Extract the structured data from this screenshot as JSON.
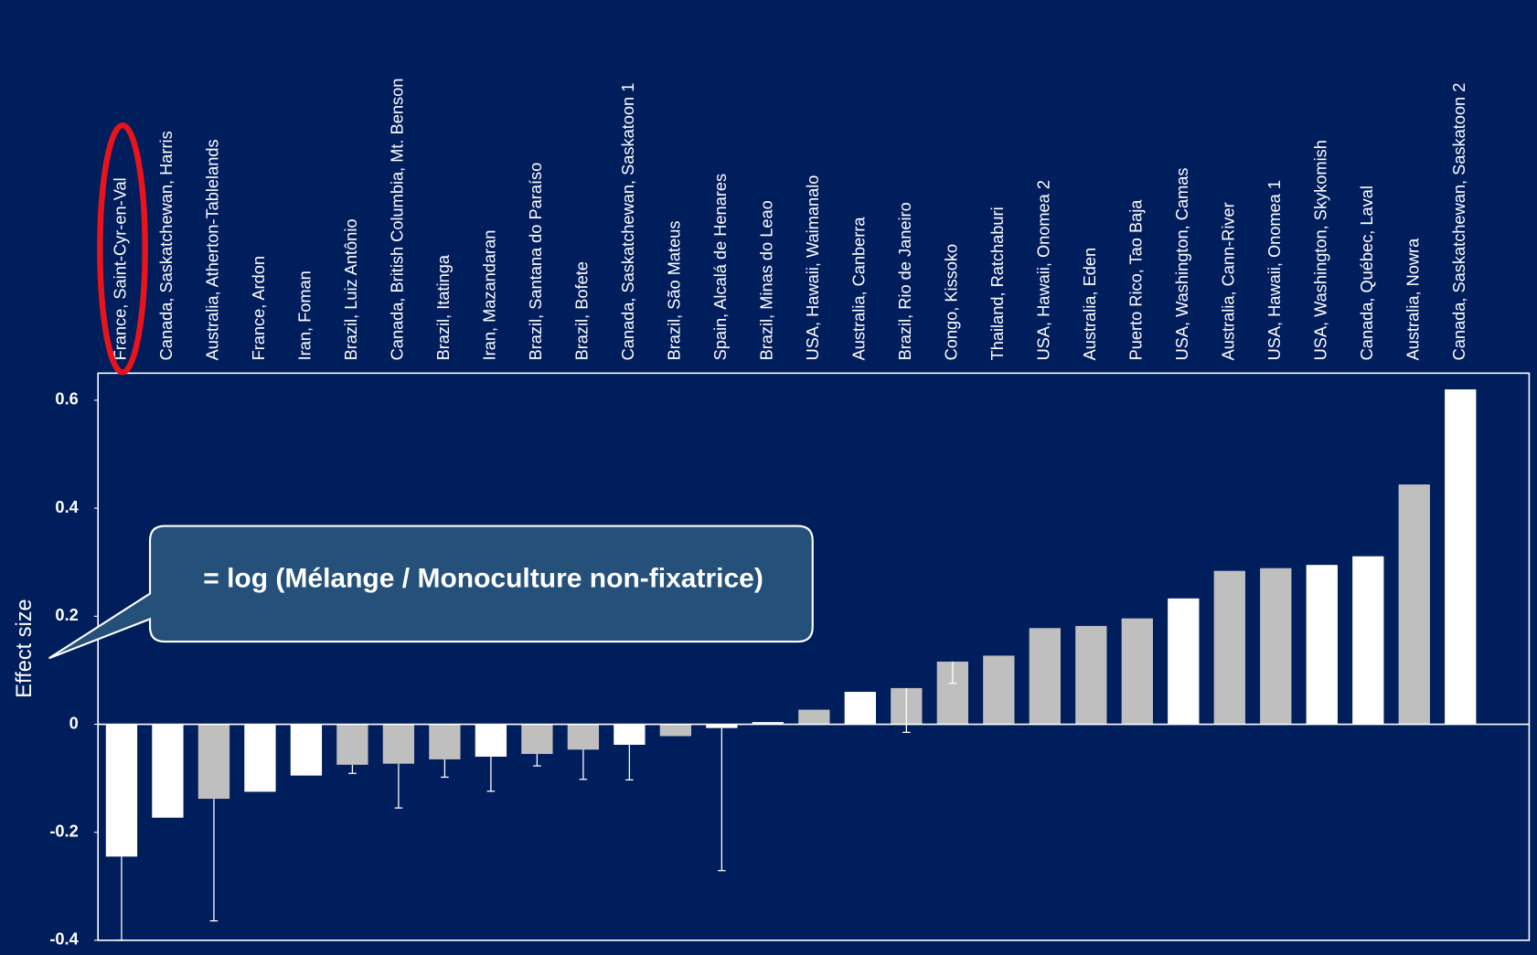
{
  "chart_data": {
    "type": "bar",
    "y_label": "Effect size",
    "annotation": "= log (Mélange / Monoculture non-fixatrice)",
    "categories": [
      "France, Saint-Cyr-en-Val",
      "Canada, Saskatchewan, Harris",
      "Australia, Atherton-Tablelands",
      "France, Ardon",
      "Iran, Foman",
      "Brazil, Luiz Antônio",
      "Canada, British Columbia, Mt. Benson",
      "Brazil, Itatinga",
      "Iran, Mazandaran",
      "Brazil, Santana do Paraíso",
      "Brazil, Bofete",
      "Canada, Saskatchewan, Saskatoon 1",
      "Brazil, São Mateus",
      "Spain, Alcalá de Henares",
      "Brazil, Minas do Leao",
      "USA, Hawaii, Waimanalo",
      "Australia, Canberra",
      "Brazil, Rio de Janeiro",
      "Congo, Kissoko",
      "Thailand, Ratchaburi",
      "USA, Hawaii, Onomea 2",
      "Australia, Eden",
      "Puerto Rico, Tao Baja",
      "USA, Washington, Camas",
      "Australia, Cann-River",
      "USA, Hawaii, Onomea 1",
      "USA, Washington, Skykomish",
      "Canada, Québec, Laval",
      "Australia, Nowra",
      "Canada, Saskatchewan, Saskatoon 2"
    ],
    "values": [
      -0.245,
      -0.173,
      -0.138,
      -0.125,
      -0.095,
      -0.075,
      -0.073,
      -0.065,
      -0.06,
      -0.055,
      -0.047,
      -0.038,
      -0.022,
      -0.007,
      0.004,
      0.027,
      0.06,
      0.067,
      0.116,
      0.127,
      0.178,
      0.182,
      0.196,
      0.233,
      0.284,
      0.289,
      0.295,
      0.311,
      0.444,
      0.62
    ],
    "errors": [
      0.155,
      null,
      0.226,
      null,
      null,
      0.016,
      0.082,
      0.033,
      0.064,
      0.022,
      0.055,
      0.065,
      null,
      0.264,
      null,
      null,
      null,
      0.082,
      0.04,
      null,
      null,
      null,
      null,
      null,
      null,
      null,
      null,
      null,
      null,
      null
    ],
    "colors": [
      "#ffffff",
      "#ffffff",
      "#bfbfbf",
      "#ffffff",
      "#ffffff",
      "#bfbfbf",
      "#bfbfbf",
      "#bfbfbf",
      "#ffffff",
      "#bfbfbf",
      "#bfbfbf",
      "#ffffff",
      "#bfbfbf",
      "#ffffff",
      "#ffffff",
      "#bfbfbf",
      "#ffffff",
      "#bfbfbf",
      "#bfbfbf",
      "#bfbfbf",
      "#bfbfbf",
      "#bfbfbf",
      "#bfbfbf",
      "#ffffff",
      "#bfbfbf",
      "#bfbfbf",
      "#ffffff",
      "#ffffff",
      "#bfbfbf",
      "#ffffff"
    ],
    "ylim": [
      -0.4,
      0.65
    ],
    "yticks": [
      -0.4,
      -0.2,
      0,
      0.2,
      0.4,
      0.6
    ]
  }
}
